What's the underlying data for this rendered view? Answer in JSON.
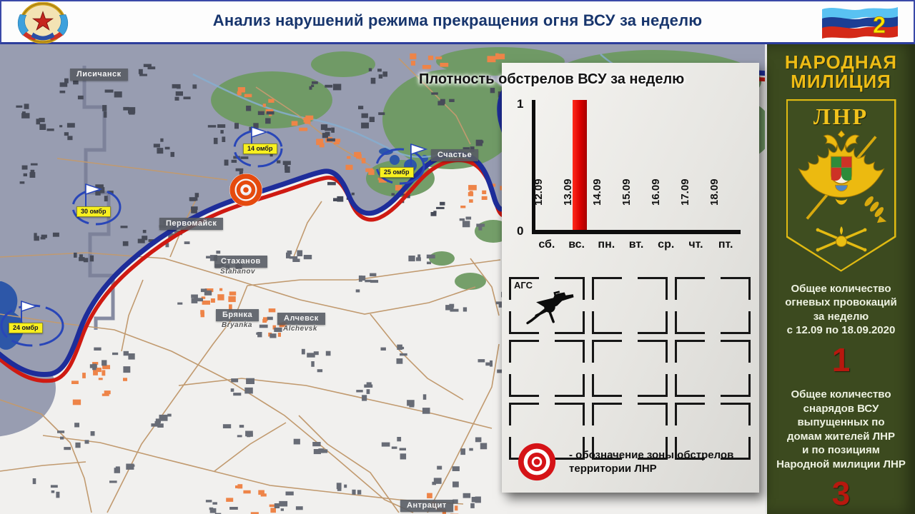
{
  "header": {
    "title": "Анализ нарушений режима прекращения огня ВСУ за неделю",
    "page_number": "2"
  },
  "map_labels": {
    "towns": [
      {
        "name": "Лисичанск",
        "latin": ""
      },
      {
        "name": "Счастье",
        "latin": ""
      },
      {
        "name": "Первомайск",
        "latin": ""
      },
      {
        "name": "Стаханов",
        "latin": "Stahanov"
      },
      {
        "name": "Брянка",
        "latin": "Bryanka"
      },
      {
        "name": "Алчевск",
        "latin": "Alchevsk"
      },
      {
        "name": "Антрацит",
        "latin": ""
      }
    ],
    "units": [
      {
        "label": "30 омбр"
      },
      {
        "label": "14 омбр"
      },
      {
        "label": "25 омбр"
      },
      {
        "label": "24 омбр"
      }
    ]
  },
  "chart_panel": {
    "title": "Плотность обстрелов ВСУ за неделю",
    "weapon_cell_label": "АГС",
    "weapon_icon": "ags-grenade-launcher-icon",
    "legend_marker_icon": "bullseye-target-icon",
    "legend_text": "- обозначение зоны обстрелов территории ЛНР"
  },
  "chart_data": {
    "type": "bar",
    "title": "Плотность обстрелов ВСУ за неделю",
    "categories_dates": [
      "12.09",
      "13.09",
      "14.09",
      "15.09",
      "16.09",
      "17.09",
      "18.09"
    ],
    "categories_days": [
      "сб.",
      "вс.",
      "пн.",
      "вт.",
      "ср.",
      "чт.",
      "пт."
    ],
    "values": [
      0,
      1,
      0,
      0,
      0,
      0,
      0
    ],
    "ylim": [
      0,
      1
    ],
    "yticks": [
      "0",
      "1"
    ],
    "bar_color": "#d90000",
    "grid": false,
    "legend_position": "none",
    "xlabel": "",
    "ylabel": ""
  },
  "sidebar": {
    "org_name_line1": "НАРОДНАЯ",
    "org_name_line2": "МИЛИЦИЯ",
    "crest_label": "ЛНР",
    "crest_icon": "double-headed-eagle-emblem-icon",
    "accent_color": "#b7180e",
    "stat1": {
      "lines": [
        "Общее количество",
        "огневых провокаций",
        "за неделю",
        "с 12.09 по 18.09.2020"
      ],
      "value": "1"
    },
    "stat2": {
      "lines": [
        "Общее количество",
        "снарядов ВСУ",
        "выпущенных по",
        "домам жителей ЛНР",
        "и по позициям",
        "Народной милиции ЛНР"
      ],
      "value": "3"
    }
  }
}
